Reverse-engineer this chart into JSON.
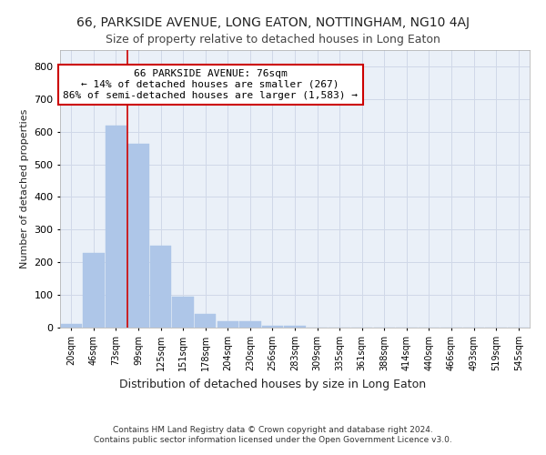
{
  "title1": "66, PARKSIDE AVENUE, LONG EATON, NOTTINGHAM, NG10 4AJ",
  "title2": "Size of property relative to detached houses in Long Eaton",
  "xlabel": "Distribution of detached houses by size in Long Eaton",
  "ylabel": "Number of detached properties",
  "categories": [
    "20sqm",
    "46sqm",
    "73sqm",
    "99sqm",
    "125sqm",
    "151sqm",
    "178sqm",
    "204sqm",
    "230sqm",
    "256sqm",
    "283sqm",
    "309sqm",
    "335sqm",
    "361sqm",
    "388sqm",
    "414sqm",
    "440sqm",
    "466sqm",
    "493sqm",
    "519sqm",
    "545sqm"
  ],
  "values": [
    10,
    228,
    618,
    562,
    250,
    95,
    42,
    20,
    20,
    5,
    5,
    0,
    0,
    0,
    0,
    0,
    0,
    0,
    0,
    0,
    0
  ],
  "bar_color": "#aec6e8",
  "bar_edge_color": "#aec6e8",
  "vline_color": "#cc0000",
  "vline_x_index": 2.5,
  "annotation_text": "66 PARKSIDE AVENUE: 76sqm\n← 14% of detached houses are smaller (267)\n86% of semi-detached houses are larger (1,583) →",
  "annotation_box_color": "#ffffff",
  "annotation_box_edge": "#cc0000",
  "ylim": [
    0,
    850
  ],
  "yticks": [
    0,
    100,
    200,
    300,
    400,
    500,
    600,
    700,
    800
  ],
  "grid_color": "#d0d8e8",
  "bg_color": "#eaf0f8",
  "footer1": "Contains HM Land Registry data © Crown copyright and database right 2024.",
  "footer2": "Contains public sector information licensed under the Open Government Licence v3.0.",
  "title1_fontsize": 10,
  "title2_fontsize": 9,
  "xlabel_fontsize": 9,
  "ylabel_fontsize": 8,
  "tick_fontsize": 7,
  "ann_fontsize": 8,
  "footer_fontsize": 6.5
}
